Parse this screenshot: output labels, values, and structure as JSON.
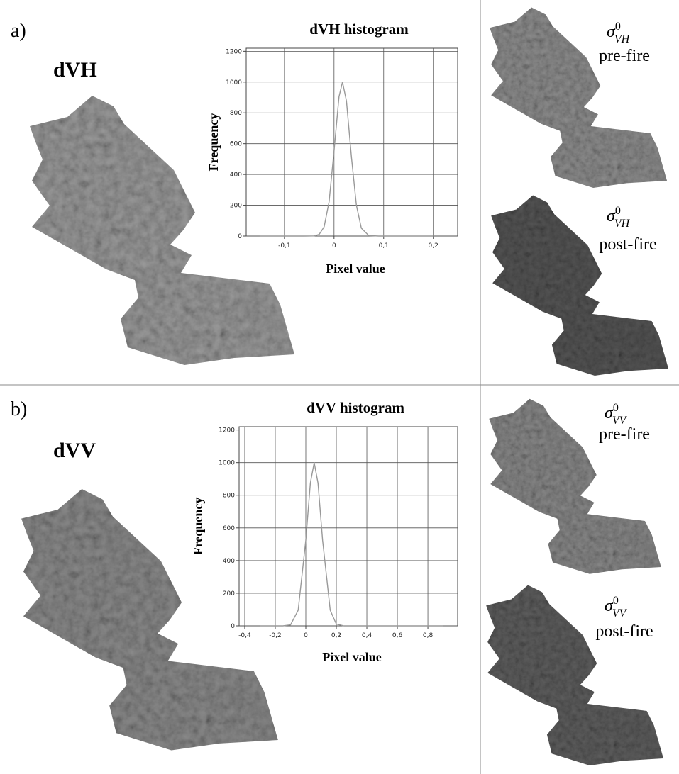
{
  "panels": [
    {
      "label": "a)",
      "map_title": "dVH",
      "images": [
        {
          "symbol": "σ",
          "superscript": "0",
          "subscript": "VH",
          "caption": "pre-fire"
        },
        {
          "symbol": "σ",
          "superscript": "0",
          "subscript": "VH",
          "caption": "post-fire"
        }
      ]
    },
    {
      "label": "b)",
      "map_title": "dVV",
      "images": [
        {
          "symbol": "σ",
          "superscript": "0",
          "subscript": "VV",
          "caption": "pre-fire"
        },
        {
          "symbol": "σ",
          "superscript": "0",
          "subscript": "VV",
          "caption": "post-fire"
        }
      ]
    }
  ],
  "chart_data": [
    {
      "type": "line",
      "title": "dVH histogram",
      "x_label": "Pixel value",
      "y_label": "Frequency",
      "color": "#999999",
      "grid": true,
      "x": [
        -0.15,
        -0.08,
        -0.06,
        -0.04,
        -0.03,
        -0.02,
        -0.01,
        0,
        0.01,
        0.017,
        0.025,
        0.035,
        0.045,
        0.055,
        0.07,
        0.09,
        0.12,
        0.2
      ],
      "values": [
        0,
        0,
        0,
        1,
        11,
        60,
        223,
        553,
        905,
        1000,
        877,
        514,
        200,
        51,
        3,
        0,
        0,
        0
      ],
      "xlim": [
        -0.177,
        0.249
      ],
      "xticks": [
        {
          "value": -0.1,
          "label": "-0,1"
        },
        0,
        {
          "value": 0.1,
          "label": "0,1"
        },
        {
          "value": 0.2,
          "label": "0,2"
        }
      ],
      "ylim": [
        0,
        1220
      ],
      "yticks": [
        0,
        200,
        400,
        600,
        800,
        1000,
        1200
      ]
    },
    {
      "type": "line",
      "title": "dVV histogram",
      "x_label": "Pixel value",
      "y_label": "Frequency",
      "color": "#999999",
      "grid": true,
      "x": [
        -0.3,
        -0.15,
        -0.1,
        -0.05,
        0,
        0.03,
        0.055,
        0.08,
        0.11,
        0.16,
        0.2,
        0.25,
        0.4,
        0.9
      ],
      "values": [
        0,
        0,
        6,
        96,
        525,
        875,
        1000,
        875,
        525,
        96,
        11,
        0,
        0,
        0
      ],
      "xlim": [
        -0.437,
        0.995
      ],
      "xticks": [
        {
          "value": -0.4,
          "label": "-0,4"
        },
        {
          "value": -0.2,
          "label": "-0,2"
        },
        0,
        {
          "value": 0.2,
          "label": "0,2"
        },
        {
          "value": 0.4,
          "label": "0,4"
        },
        {
          "value": 0.6,
          "label": "0,6"
        },
        {
          "value": 0.8,
          "label": "0,8"
        }
      ],
      "ylim": [
        0,
        1220
      ],
      "yticks": [
        0,
        200,
        400,
        600,
        800,
        1000,
        1200
      ]
    }
  ]
}
